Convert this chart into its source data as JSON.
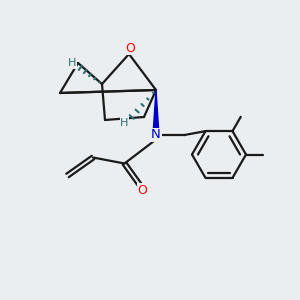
{
  "bg_color": "#eaeef0",
  "atom_colors": {
    "O": "#ff0000",
    "N": "#0000cc",
    "H": "#2e7070",
    "C": "#1a1a1a"
  },
  "bond_lw": 1.6,
  "bond_color": "#1a1a1a",
  "stereo_color": "#2e7070"
}
